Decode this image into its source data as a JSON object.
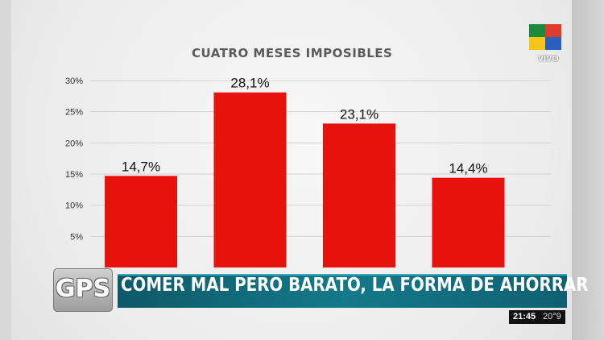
{
  "channel": {
    "label": "VIVO",
    "colors": [
      "#1b8a3a",
      "#e23b2e",
      "#f5c518",
      "#2a5fbf"
    ]
  },
  "lower_third": {
    "badge": "GPS",
    "headline": "COMER MAL PERO BARATO, LA FORMA DE AHORRAR"
  },
  "status": {
    "time": "21:45",
    "temperature": "20°9"
  },
  "colors": {
    "bar": "#e8120c",
    "banner": "#14798a",
    "grid": "#d4d4d4",
    "title": "#5a5a5a"
  },
  "chart_data": {
    "type": "bar",
    "title": "CUATRO MESES IMPOSIBLES",
    "categories": [
      "",
      "",
      "",
      ""
    ],
    "values": [
      14.7,
      28.1,
      23.1,
      14.4
    ],
    "value_labels": [
      "14,7%",
      "28,1%",
      "23,1%",
      "14,4%"
    ],
    "yticks": [
      {
        "value": 5,
        "label": "5%"
      },
      {
        "value": 10,
        "label": "10%"
      },
      {
        "value": 15,
        "label": "15%"
      },
      {
        "value": 20,
        "label": "20%"
      },
      {
        "value": 25,
        "label": "25%"
      },
      {
        "value": 30,
        "label": "30%"
      }
    ],
    "ylim": [
      0,
      30
    ],
    "grid": true,
    "xlabel": "",
    "ylabel": ""
  }
}
